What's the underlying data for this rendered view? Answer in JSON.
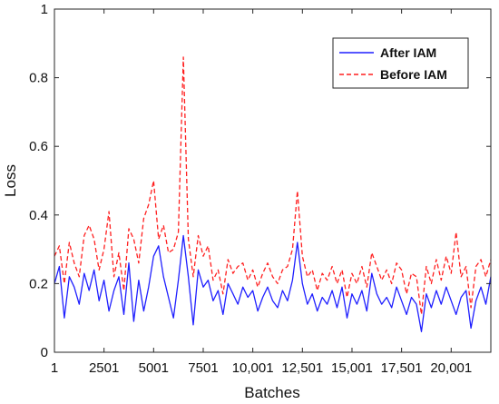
{
  "chart_data": {
    "type": "line",
    "xlabel": "Batches",
    "ylabel": "Loss",
    "xlim": [
      1,
      22000
    ],
    "ylim": [
      0,
      1
    ],
    "grid": false,
    "legend_position": "top-right",
    "x_ticks": [
      1,
      2501,
      5001,
      7501,
      10001,
      12501,
      15001,
      17501,
      20001
    ],
    "x_tick_labels": [
      "1",
      "2501",
      "5001",
      "7501",
      "10,001",
      "12,501",
      "15,001",
      "17,501",
      "20,001"
    ],
    "y_ticks": [
      0,
      0.2,
      0.4,
      0.6,
      0.8,
      1
    ],
    "y_tick_labels": [
      "0",
      "0.2",
      "0.4",
      "0.6",
      "0.8",
      "1"
    ],
    "x": [
      1,
      250,
      500,
      750,
      1000,
      1250,
      1500,
      1750,
      2000,
      2250,
      2500,
      2750,
      3000,
      3250,
      3500,
      3750,
      4000,
      4250,
      4500,
      4750,
      5000,
      5250,
      5500,
      5750,
      6000,
      6250,
      6500,
      6750,
      7000,
      7250,
      7500,
      7750,
      8000,
      8250,
      8500,
      8750,
      9000,
      9250,
      9500,
      9750,
      10000,
      10250,
      10500,
      10750,
      11000,
      11250,
      11500,
      11750,
      12000,
      12250,
      12500,
      12750,
      13000,
      13250,
      13500,
      13750,
      14000,
      14250,
      14500,
      14750,
      15000,
      15250,
      15500,
      15750,
      16000,
      16250,
      16500,
      16750,
      17000,
      17250,
      17500,
      17750,
      18000,
      18250,
      18500,
      18750,
      19000,
      19250,
      19500,
      19750,
      20000,
      20250,
      20500,
      20750,
      21000,
      21250,
      21500,
      21750,
      22000
    ],
    "series": [
      {
        "name": "After IAM",
        "color": "#1f1fff",
        "style": "solid",
        "values": [
          0.2,
          0.25,
          0.1,
          0.22,
          0.19,
          0.14,
          0.23,
          0.18,
          0.24,
          0.15,
          0.21,
          0.12,
          0.18,
          0.22,
          0.11,
          0.26,
          0.09,
          0.21,
          0.12,
          0.19,
          0.28,
          0.31,
          0.22,
          0.16,
          0.1,
          0.21,
          0.34,
          0.22,
          0.08,
          0.24,
          0.19,
          0.21,
          0.15,
          0.18,
          0.11,
          0.2,
          0.17,
          0.14,
          0.19,
          0.16,
          0.18,
          0.12,
          0.16,
          0.19,
          0.15,
          0.13,
          0.18,
          0.15,
          0.21,
          0.32,
          0.2,
          0.14,
          0.17,
          0.12,
          0.16,
          0.14,
          0.18,
          0.13,
          0.19,
          0.1,
          0.17,
          0.14,
          0.18,
          0.12,
          0.23,
          0.17,
          0.14,
          0.16,
          0.13,
          0.19,
          0.15,
          0.11,
          0.16,
          0.14,
          0.06,
          0.17,
          0.13,
          0.18,
          0.14,
          0.19,
          0.15,
          0.11,
          0.16,
          0.18,
          0.07,
          0.15,
          0.19,
          0.14,
          0.22
        ]
      },
      {
        "name": "Before IAM",
        "color": "#ff1f1f",
        "style": "dashed",
        "values": [
          0.28,
          0.31,
          0.2,
          0.32,
          0.26,
          0.22,
          0.34,
          0.37,
          0.33,
          0.24,
          0.3,
          0.41,
          0.22,
          0.29,
          0.18,
          0.36,
          0.33,
          0.26,
          0.39,
          0.43,
          0.5,
          0.33,
          0.37,
          0.29,
          0.3,
          0.35,
          0.86,
          0.33,
          0.22,
          0.34,
          0.28,
          0.31,
          0.21,
          0.24,
          0.17,
          0.27,
          0.23,
          0.25,
          0.26,
          0.21,
          0.24,
          0.19,
          0.23,
          0.26,
          0.22,
          0.2,
          0.24,
          0.25,
          0.3,
          0.47,
          0.28,
          0.22,
          0.24,
          0.18,
          0.23,
          0.21,
          0.25,
          0.2,
          0.24,
          0.16,
          0.23,
          0.2,
          0.25,
          0.19,
          0.29,
          0.25,
          0.21,
          0.24,
          0.2,
          0.26,
          0.24,
          0.17,
          0.23,
          0.22,
          0.11,
          0.25,
          0.2,
          0.27,
          0.21,
          0.28,
          0.23,
          0.35,
          0.22,
          0.25,
          0.13,
          0.25,
          0.27,
          0.22,
          0.27
        ]
      }
    ]
  }
}
